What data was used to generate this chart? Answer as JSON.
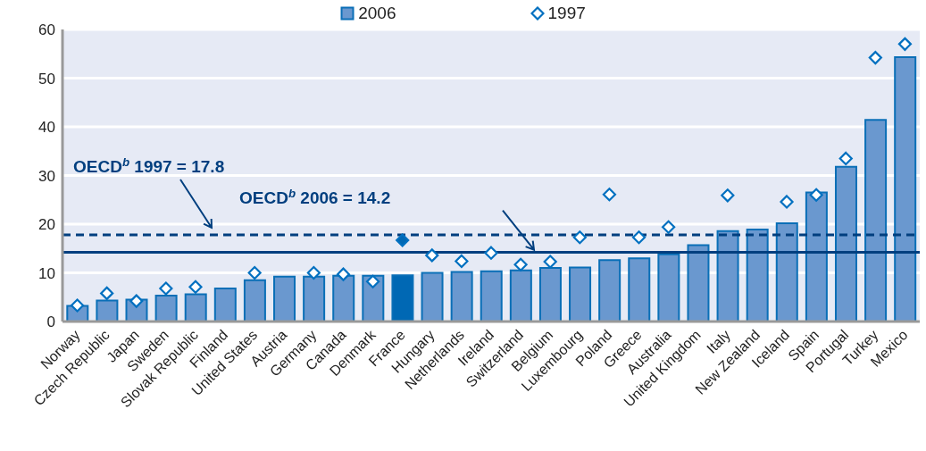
{
  "chart_data": {
    "type": "bar",
    "categories": [
      "Norway",
      "Czech Republic",
      "Japan",
      "Sweden",
      "Slovak Republic",
      "Finland",
      "United States",
      "Austria",
      "Germany",
      "Canada",
      "Denmark",
      "France",
      "Hungary",
      "Netherlands",
      "Ireland",
      "Switzerland",
      "Belgium",
      "Luxembourg",
      "Poland",
      "Greece",
      "Australia",
      "United Kingdom",
      "Italy",
      "New Zealand",
      "Iceland",
      "Spain",
      "Portugal",
      "Turkey",
      "Mexico"
    ],
    "series": [
      {
        "name": "2006",
        "color": "#6a98cf",
        "colors": [
          "#6a98cf",
          "#6a98cf",
          "#6a98cf",
          "#6a98cf",
          "#6a98cf",
          "#6a98cf",
          "#6a98cf",
          "#6a98cf",
          "#6a98cf",
          "#6a98cf",
          "#6a98cf",
          "#0068b4",
          "#6a98cf",
          "#6a98cf",
          "#6a98cf",
          "#6a98cf",
          "#6a98cf",
          "#6a98cf",
          "#6a98cf",
          "#6a98cf",
          "#6a98cf",
          "#6a98cf",
          "#6a98cf",
          "#6a98cf",
          "#6a98cf",
          "#6a98cf",
          "#6a98cf",
          "#6a98cf",
          "#6a98cf"
        ],
        "values": [
          3.2,
          4.3,
          4.5,
          5.3,
          5.6,
          6.8,
          8.5,
          9.2,
          9.2,
          9.4,
          9.4,
          9.5,
          10.0,
          10.2,
          10.3,
          10.5,
          11.0,
          11.1,
          12.6,
          13.0,
          13.8,
          15.7,
          18.6,
          18.9,
          20.2,
          26.5,
          31.8,
          41.4,
          54.3
        ]
      },
      {
        "name": "1997",
        "type": "scatter",
        "marker": "diamond",
        "color": "#0070c0",
        "colors": [
          "#ffffff",
          "#ffffff",
          "#ffffff",
          "#ffffff",
          "#ffffff",
          null,
          "#ffffff",
          null,
          "#ffffff",
          "#ffffff",
          "#ffffff",
          "#0068b4",
          "#ffffff",
          "#ffffff",
          "#ffffff",
          "#ffffff",
          "#ffffff",
          "#ffffff",
          "#ffffff",
          "#ffffff",
          "#ffffff",
          null,
          "#ffffff",
          null,
          "#ffffff",
          "#ffffff",
          "#ffffff",
          "#ffffff",
          "#ffffff"
        ],
        "values": [
          3.3,
          5.8,
          4.2,
          6.8,
          7.1,
          null,
          10.0,
          null,
          10.0,
          9.7,
          8.2,
          16.7,
          13.6,
          12.4,
          14.1,
          11.7,
          12.3,
          17.3,
          26.1,
          17.3,
          19.4,
          null,
          25.9,
          null,
          24.6,
          26.0,
          33.5,
          54.2,
          57.0
        ]
      }
    ],
    "ylim": [
      0,
      60
    ],
    "yticks": [
      0,
      10,
      20,
      30,
      40,
      50,
      60
    ],
    "grid": "y",
    "legend": "top",
    "ref_lines": [
      {
        "axis": "y",
        "value": 17.8,
        "label": "OECD$^{b}$ 1997 = 17.8",
        "color": "#003f7f",
        "line_style": "dashed"
      },
      {
        "axis": "y",
        "value": 14.2,
        "label": "OECD$^{b}$ 2006 = 14.2",
        "color": "#003f7f",
        "line_style": "solid"
      }
    ]
  }
}
